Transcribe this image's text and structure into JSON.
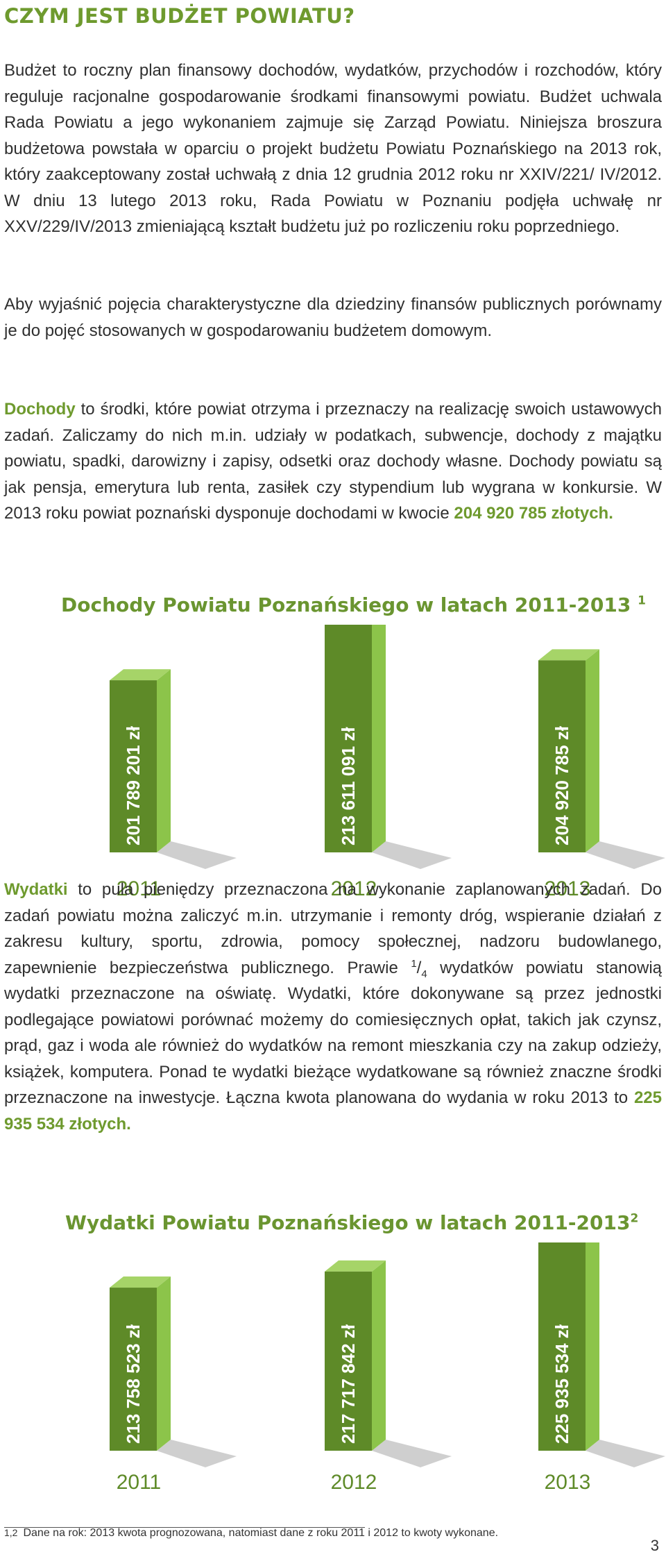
{
  "heading": "CZYM JEST BUDŻET POWIATU?",
  "intro": {
    "p1": "Budżet to roczny plan finansowy dochodów, wydatków, przychodów i rozchodów, który reguluje racjonalne gospodarowanie środkami finansowymi powiatu. Budżet uchwala Rada Powiatu a jego wykonaniem zajmuje się Zarząd Powiatu. Niniejsza broszura budżetowa powstała w oparciu o projekt budżetu Powiatu Poznańskiego na 2013 rok, który zaakceptowany został uchwałą z dnia 12 grudnia 2012 roku nr XXIV/221/ IV/2012. W dniu 13 lutego 2013 roku, Rada Powiatu w Poznaniu podjęła uchwałę nr XXV/229/IV/2013 zmieniającą kształt budżetu już po rozliczeniu roku poprzedniego.",
    "p2": "Aby wyjaśnić pojęcia charakterystyczne dla dziedziny finansów publicznych porównamy je do pojęć stosowanych w gospodarowaniu budżetem domowym."
  },
  "dochody": {
    "term": "Dochody",
    "text": " to środki, które powiat otrzyma i przeznaczy na realizację swoich ustawowych zadań. Zaliczamy do nich m.in. udziały w podatkach, subwencje, dochody z majątku powiatu, spadki, darowizny i zapisy, odsetki oraz dochody własne. Dochody powiatu są jak pensja, emerytura lub renta, zasiłek czy stypendium lub wygrana w konkursie. W 2013 roku powiat poznański dysponuje dochodami w kwocie ",
    "amount": "204 920 785 złotych."
  },
  "wydatki": {
    "term": "Wydatki",
    "text_a": " to pula pieniędzy przeznaczona na wykonanie zaplanowanych zadań. Do zadań powiatu można zaliczyć m.in. utrzymanie i remonty dróg, wspieranie działań z zakresu kultury, sportu, zdrowia, pomocy społecznej, nadzoru budowlanego, zapewnienie bezpieczeństwa publicznego. Prawie ",
    "frac_num": "1",
    "frac_den": "4",
    "text_b": " wydatków powiatu stanowią wydatki przeznaczone na oświatę. Wydatki, które dokonywane są przez jednostki podlegające powiatowi porównać możemy do comiesięcznych opłat, takich jak czynsz, prąd, gaz i woda ale również do wydatków na remont mieszkania czy na zakup odzieży, książek, komputera. Ponad te wydatki bieżące wydatkowane są również znaczne środki przeznaczone na inwestycje. Łączna kwota planowana do wydania w roku 2013 to ",
    "amount": "225 935 534 złotych."
  },
  "chart_data": [
    {
      "type": "bar",
      "title": "Dochody Powiatu Poznańskiego w latach 2011-2013",
      "footnote_mark": "1",
      "categories": [
        "2011",
        "2012",
        "2013"
      ],
      "values": [
        201789201,
        213611091,
        204920785
      ],
      "value_labels": [
        "201 789 201 zł",
        "213 611 091 zł",
        "204 920 785 zł"
      ],
      "colors": {
        "front": "#5e8a28",
        "side": "#8cc44a",
        "top": "#a6d468",
        "shadow": "#cfcfcf"
      }
    },
    {
      "type": "bar",
      "title": "Wydatki Powiatu Poznańskiego w latach 2011-2013",
      "footnote_mark": "2",
      "categories": [
        "2011",
        "2012",
        "2013"
      ],
      "values": [
        213758523,
        217717842,
        225935534
      ],
      "value_labels": [
        "213 758 523 zł",
        "217 717 842 zł",
        "225 935 534 zł"
      ],
      "colors": {
        "front": "#5e8a28",
        "side": "#8cc44a",
        "top": "#a6d468",
        "shadow": "#cfcfcf"
      }
    }
  ],
  "footnote": {
    "mark": "1,2",
    "text": "Dane na rok: 2013 kwota prognozowana, natomiast dane z roku 2011 i 2012 to kwoty wykonane."
  },
  "page_number": "3"
}
